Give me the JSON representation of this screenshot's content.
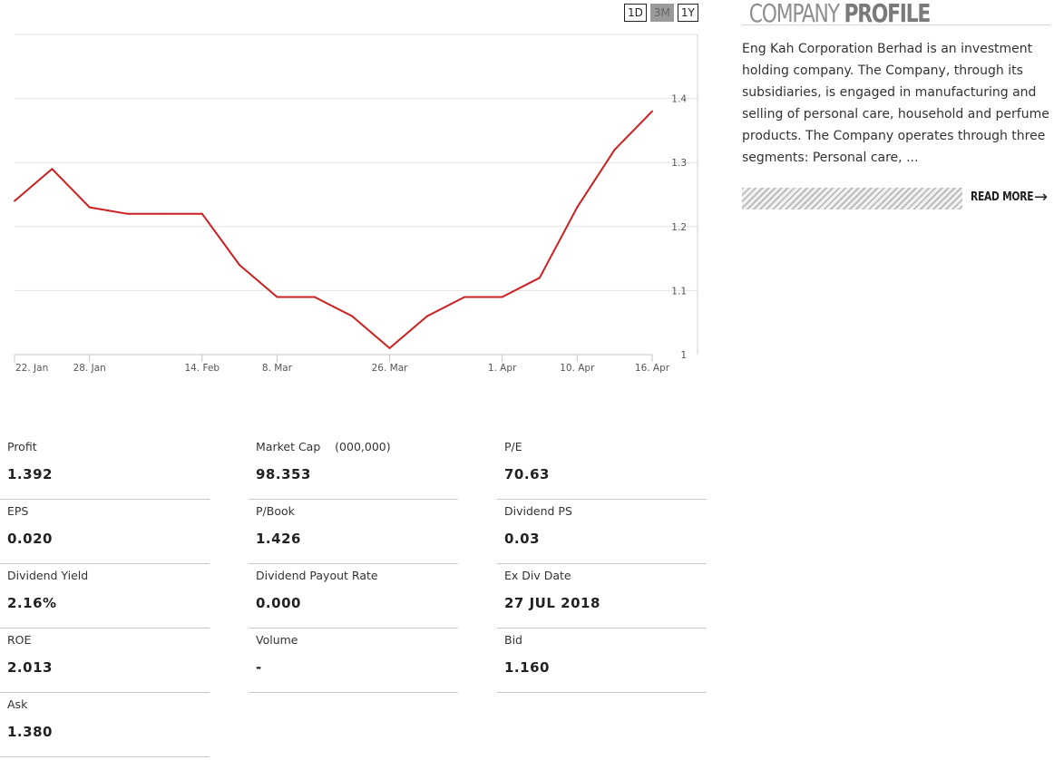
{
  "range_buttons": [
    {
      "label": "1D",
      "active": false
    },
    {
      "label": "3M",
      "active": true
    },
    {
      "label": "1Y",
      "active": false
    }
  ],
  "chart_data": {
    "type": "line",
    "title": "",
    "xlabel": "",
    "ylabel": "",
    "ylim": [
      1,
      1.5
    ],
    "y_ticks": [
      1,
      1.1,
      1.2,
      1.3,
      1.4
    ],
    "x_ticks": [
      {
        "label": "22. Jan",
        "index": 0
      },
      {
        "label": "28. Jan",
        "index": 2
      },
      {
        "label": "14. Feb",
        "index": 5
      },
      {
        "label": "8. Mar",
        "index": 7
      },
      {
        "label": "26. Mar",
        "index": 10
      },
      {
        "label": "1. Apr",
        "index": 13
      },
      {
        "label": "10. Apr",
        "index": 15
      },
      {
        "label": "16. Apr",
        "index": 17
      }
    ],
    "grid": true,
    "line_color": "#cc1f1f",
    "series": [
      {
        "values": [
          1.24,
          1.29,
          1.23,
          1.22,
          1.22,
          1.22,
          1.14,
          1.09,
          1.09,
          1.06,
          1.01,
          1.06,
          1.09,
          1.09,
          1.12,
          1.23,
          1.32,
          1.38
        ]
      }
    ]
  },
  "profile": {
    "title_light": "COMPANY",
    "title_bold": "PROFILE",
    "description": "Eng Kah Corporation Berhad is an investment holding company. The Company, through its subsidiaries, is engaged in manufacturing and selling of personal care, household and perfume products. The Company operates through three segments: Personal care, ...",
    "read_more": "READ MORE"
  },
  "stats": [
    {
      "label": "Profit",
      "value": "1.392"
    },
    {
      "label": "Market Cap    (000,000)",
      "value": "98.353"
    },
    {
      "label": "P/E",
      "value": "70.63"
    },
    {
      "label": "EPS",
      "value": "0.020"
    },
    {
      "label": "P/Book",
      "value": "1.426"
    },
    {
      "label": "Dividend PS",
      "value": "0.03"
    },
    {
      "label": "Dividend Yield",
      "value": "2.16%"
    },
    {
      "label": "Dividend Payout Rate",
      "value": "0.000"
    },
    {
      "label": "Ex Div Date",
      "value": "27 JUL 2018"
    },
    {
      "label": "ROE",
      "value": "2.013"
    },
    {
      "label": "Volume",
      "value": "-"
    },
    {
      "label": "Bid",
      "value": "1.160"
    },
    {
      "label": "Ask",
      "value": "1.380"
    }
  ]
}
